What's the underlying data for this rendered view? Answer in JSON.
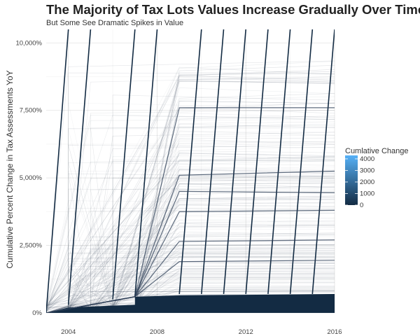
{
  "chart_data": {
    "type": "line",
    "title": "The Majority of Tax Lots Values Increase Gradually Over Time",
    "subtitle": "But Some See Dramatic Spikes in Value",
    "xlabel": "",
    "ylabel": "Cumulative Percent Change in Tax Assessments YoY",
    "xlim": [
      2003,
      2016
    ],
    "ylim": [
      0,
      10500
    ],
    "x_ticks": [
      2004,
      2008,
      2012,
      2016
    ],
    "x_tick_labels": [
      "2004",
      "2008",
      "2012",
      "2016"
    ],
    "y_ticks": [
      0,
      2500,
      5000,
      7500,
      10000
    ],
    "y_tick_labels": [
      "0%",
      "2,500%",
      "5,000%",
      "7,500%",
      "10,000%"
    ],
    "grid": true,
    "legend": {
      "title": "Cumlative Change",
      "position": "right",
      "type": "colorbar",
      "range": [
        0,
        4300
      ],
      "ticks": [
        0,
        1000,
        2000,
        3000,
        4000
      ],
      "tick_labels": [
        "0",
        "1000",
        "2000",
        "3000",
        "4000"
      ],
      "low_color": "#132B43",
      "high_color": "#56B1F7"
    },
    "series": [
      {
        "x": [
          2003,
          2004
        ],
        "y": [
          0,
          10500
        ]
      },
      {
        "x": [
          2004,
          2005
        ],
        "y": [
          300,
          10500
        ]
      },
      {
        "x": [
          2006,
          2007
        ],
        "y": [
          500,
          10500
        ]
      },
      {
        "x": [
          2007,
          2008
        ],
        "y": [
          600,
          10500
        ]
      },
      {
        "x": [
          2009,
          2010
        ],
        "y": [
          700,
          10500
        ]
      },
      {
        "x": [
          2010,
          2011
        ],
        "y": [
          700,
          10500
        ]
      },
      {
        "x": [
          2011,
          2012
        ],
        "y": [
          700,
          10500
        ]
      },
      {
        "x": [
          2012,
          2013
        ],
        "y": [
          700,
          10500
        ]
      },
      {
        "x": [
          2013,
          2014
        ],
        "y": [
          700,
          10500
        ]
      },
      {
        "x": [
          2014,
          2015
        ],
        "y": [
          700,
          10500
        ]
      },
      {
        "x": [
          2015,
          2016
        ],
        "y": [
          700,
          10500
        ]
      },
      {
        "x": [
          2003,
          2007,
          2009,
          2016
        ],
        "y": [
          0,
          600,
          7600,
          7600
        ]
      },
      {
        "x": [
          2003,
          2007,
          2009,
          2016
        ],
        "y": [
          0,
          600,
          5100,
          5250
        ]
      },
      {
        "x": [
          2003,
          2007,
          2009,
          2016
        ],
        "y": [
          0,
          600,
          4500,
          4450
        ]
      },
      {
        "x": [
          2003,
          2007,
          2009,
          2016
        ],
        "y": [
          0,
          600,
          3750,
          3800
        ]
      },
      {
        "x": [
          2003,
          2007,
          2009,
          2016
        ],
        "y": [
          0,
          600,
          2650,
          2700
        ]
      },
      {
        "x": [
          2003,
          2007,
          2009,
          2016
        ],
        "y": [
          0,
          600,
          1900,
          1950
        ]
      }
    ],
    "band": {
      "x": [
        2003,
        2004,
        2007,
        2007,
        2009,
        2016
      ],
      "y": [
        0,
        200,
        300,
        600,
        650,
        700
      ]
    }
  }
}
